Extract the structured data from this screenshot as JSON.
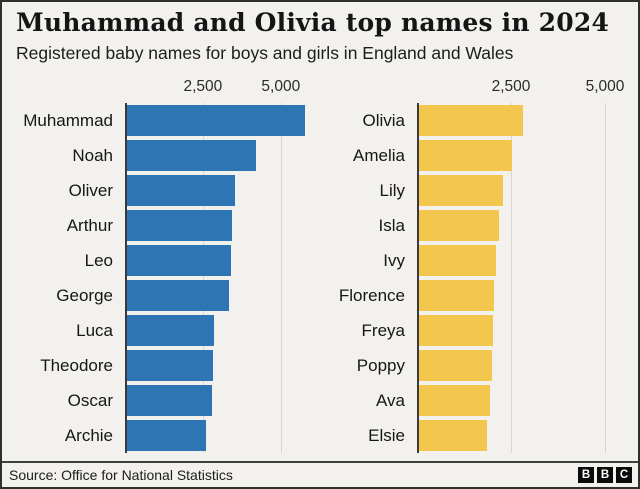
{
  "header": {
    "title": "Muhammad and Olivia top names in 2024",
    "subtitle": "Registered baby names for boys and girls in England and Wales"
  },
  "footer": {
    "source": "Source: Office for National Statistics",
    "logo_letters": [
      "B",
      "B",
      "C"
    ]
  },
  "colors": {
    "background": "#f3f1ee",
    "boys_bar": "#2e75b6",
    "girls_bar": "#f3c64e",
    "axis": "#3a3a3a",
    "gridline": "#d9d5d1",
    "text": "#1a1a1a"
  },
  "chart_data": [
    {
      "type": "bar",
      "orientation": "horizontal",
      "group": "boys",
      "title": "",
      "xlabel": "",
      "ylabel": "",
      "categories": [
        "Muhammad",
        "Noah",
        "Oliver",
        "Arthur",
        "Leo",
        "George",
        "Luca",
        "Theodore",
        "Oscar",
        "Archie"
      ],
      "values": [
        5720,
        4140,
        3470,
        3380,
        3340,
        3280,
        2800,
        2750,
        2740,
        2550
      ],
      "axis_max": 6000,
      "ticks": [
        {
          "value": 2500,
          "label": "2,500"
        },
        {
          "value": 5000,
          "label": "5,000"
        }
      ],
      "bar_color": "#2e75b6",
      "grid": true,
      "legend": "none"
    },
    {
      "type": "bar",
      "orientation": "horizontal",
      "group": "girls",
      "title": "",
      "xlabel": "",
      "ylabel": "",
      "categories": [
        "Olivia",
        "Amelia",
        "Lily",
        "Isla",
        "Ivy",
        "Florence",
        "Freya",
        "Poppy",
        "Ava",
        "Elsie"
      ],
      "values": [
        2760,
        2470,
        2230,
        2130,
        2050,
        2000,
        1970,
        1940,
        1890,
        1810
      ],
      "axis_max": 5770,
      "ticks": [
        {
          "value": 2500,
          "label": "2,500"
        },
        {
          "value": 5000,
          "label": "5,000"
        }
      ],
      "bar_color": "#f3c64e",
      "grid": true,
      "legend": "none"
    }
  ]
}
